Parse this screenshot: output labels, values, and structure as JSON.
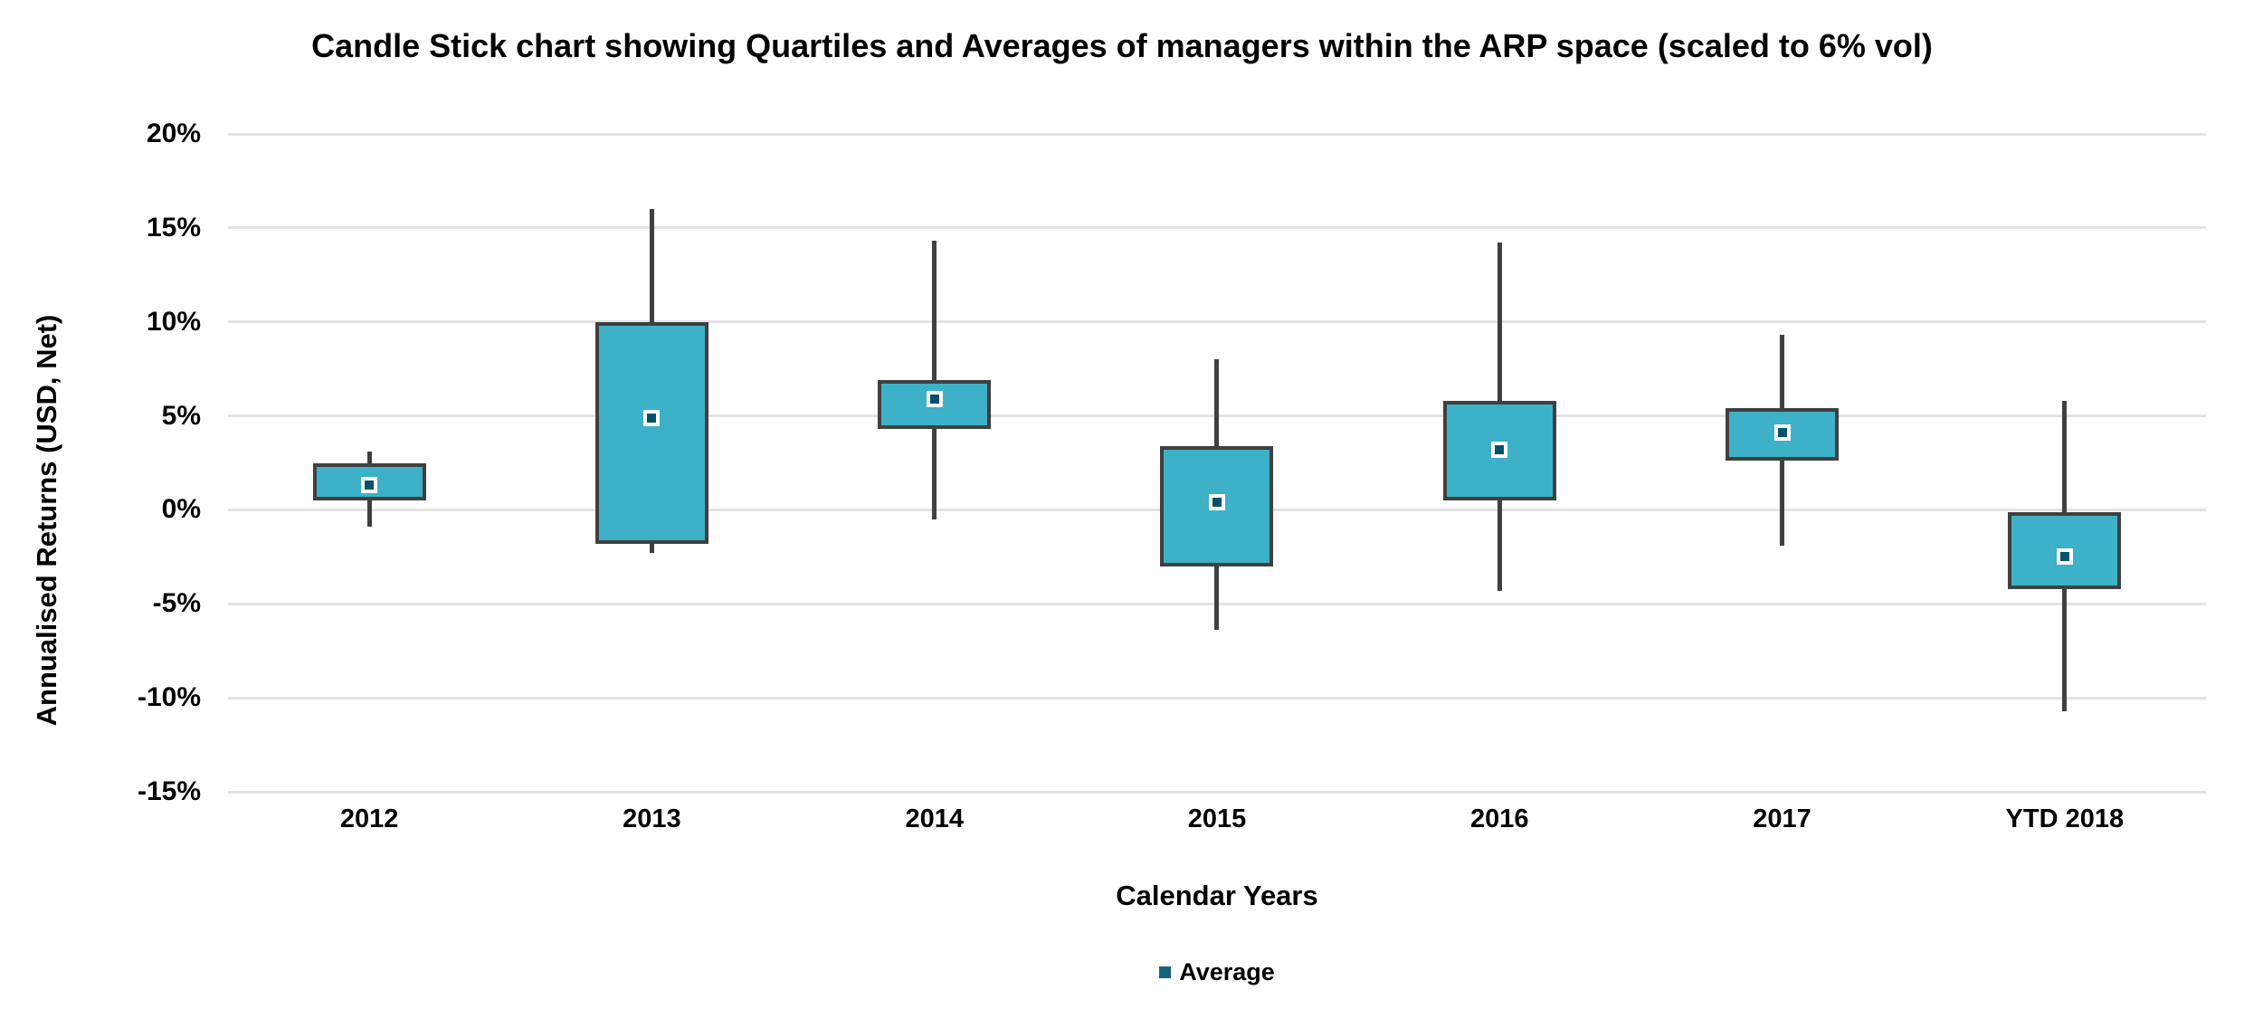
{
  "colors": {
    "background": "#FFFFFF",
    "text": "#000000",
    "gridline": "#E3E3E3",
    "box_fill": "#3CB1C8",
    "box_border": "#404040",
    "whisker": "#404040",
    "average_fill": "#05516B",
    "average_border": "#FFFFFF",
    "legend_marker": "#17627B"
  },
  "chart_data": {
    "type": "candlestick-box",
    "title": "Candle Stick chart showing Quartiles and Averages of managers within the ARP space (scaled to 6% vol)",
    "xlabel": "Calendar Years",
    "ylabel": "Annualised Returns (USD, Net)",
    "ylim": [
      -15,
      20
    ],
    "grid": true,
    "yticks": [
      20,
      15,
      10,
      5,
      0,
      -5,
      -10,
      -15
    ],
    "ytick_labels": [
      "20%",
      "15%",
      "10%",
      "5%",
      "0%",
      "-5%",
      "-10%",
      "-15%"
    ],
    "categories": [
      "2012",
      "2013",
      "2014",
      "2015",
      "2016",
      "2017",
      "YTD 2018"
    ],
    "points": [
      {
        "category": "2012",
        "high": 3.1,
        "q3": 2.5,
        "q1": 0.5,
        "low": -0.9,
        "average": 1.3
      },
      {
        "category": "2013",
        "high": 16.0,
        "q3": 10.0,
        "q1": -1.8,
        "low": -2.3,
        "average": 4.9
      },
      {
        "category": "2014",
        "high": 14.3,
        "q3": 6.9,
        "q1": 4.3,
        "low": -0.5,
        "average": 5.9
      },
      {
        "category": "2015",
        "high": 8.0,
        "q3": 3.4,
        "q1": -3.0,
        "low": -6.4,
        "average": 0.4
      },
      {
        "category": "2016",
        "high": 14.2,
        "q3": 5.8,
        "q1": 0.5,
        "low": -4.3,
        "average": 3.2
      },
      {
        "category": "2017",
        "high": 9.3,
        "q3": 5.4,
        "q1": 2.6,
        "low": -1.9,
        "average": 4.1
      },
      {
        "category": "YTD 2018",
        "high": 5.8,
        "q3": -0.1,
        "q1": -4.2,
        "low": -10.7,
        "average": -2.5
      }
    ],
    "legend": {
      "position": "bottom",
      "items": [
        {
          "label": "Average"
        }
      ]
    }
  }
}
